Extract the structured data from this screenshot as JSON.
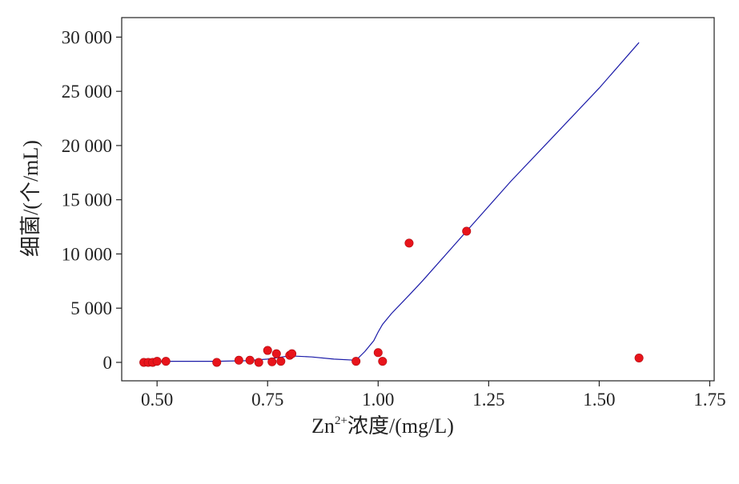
{
  "chart_data": {
    "type": "scatter",
    "title": "",
    "xlabel_main": "Zn",
    "xlabel_sup": "2+",
    "xlabel_rest": "浓度/(mg/L)",
    "ylabel": "细菌/(个/mL)",
    "xlim": [
      0.42,
      1.76
    ],
    "ylim": [
      -1700,
      31800
    ],
    "x_ticks": [
      0.5,
      0.75,
      1.0,
      1.25,
      1.5,
      1.75
    ],
    "x_tick_labels": [
      "0.50",
      "0.75",
      "1.00",
      "1.25",
      "1.50",
      "1.75"
    ],
    "y_ticks": [
      0,
      5000,
      10000,
      15000,
      20000,
      25000,
      30000
    ],
    "y_tick_labels": [
      "0",
      "5 000",
      "10 000",
      "15 000",
      "20 000",
      "25 000",
      "30 000"
    ],
    "grid": false,
    "colors": {
      "points": "#e8141b",
      "line": "#1a1aa8",
      "axis": "#222222"
    },
    "series": [
      {
        "kind": "scatter",
        "x": [
          0.47,
          0.48,
          0.49,
          0.5,
          0.52,
          0.635,
          0.685,
          0.71,
          0.73,
          0.75,
          0.76,
          0.77,
          0.78,
          0.8,
          0.805,
          0.95,
          1.0,
          1.01,
          1.07,
          1.2,
          1.59
        ],
        "y": [
          0,
          0,
          0,
          100,
          100,
          0,
          200,
          200,
          0,
          1100,
          50,
          800,
          100,
          650,
          800,
          100,
          900,
          100,
          11000,
          12100,
          400
        ]
      },
      {
        "kind": "line",
        "x": [
          0.47,
          0.52,
          0.635,
          0.7,
          0.75,
          0.8,
          0.85,
          0.9,
          0.95,
          0.97,
          0.99,
          1.0,
          1.01,
          1.03,
          1.07,
          1.1,
          1.2,
          1.3,
          1.4,
          1.5,
          1.59
        ],
        "y": [
          0,
          100,
          100,
          150,
          300,
          600,
          500,
          300,
          200,
          1000,
          2000,
          2800,
          3500,
          4500,
          6200,
          7500,
          12100,
          16700,
          21000,
          25300,
          29500
        ]
      }
    ]
  }
}
